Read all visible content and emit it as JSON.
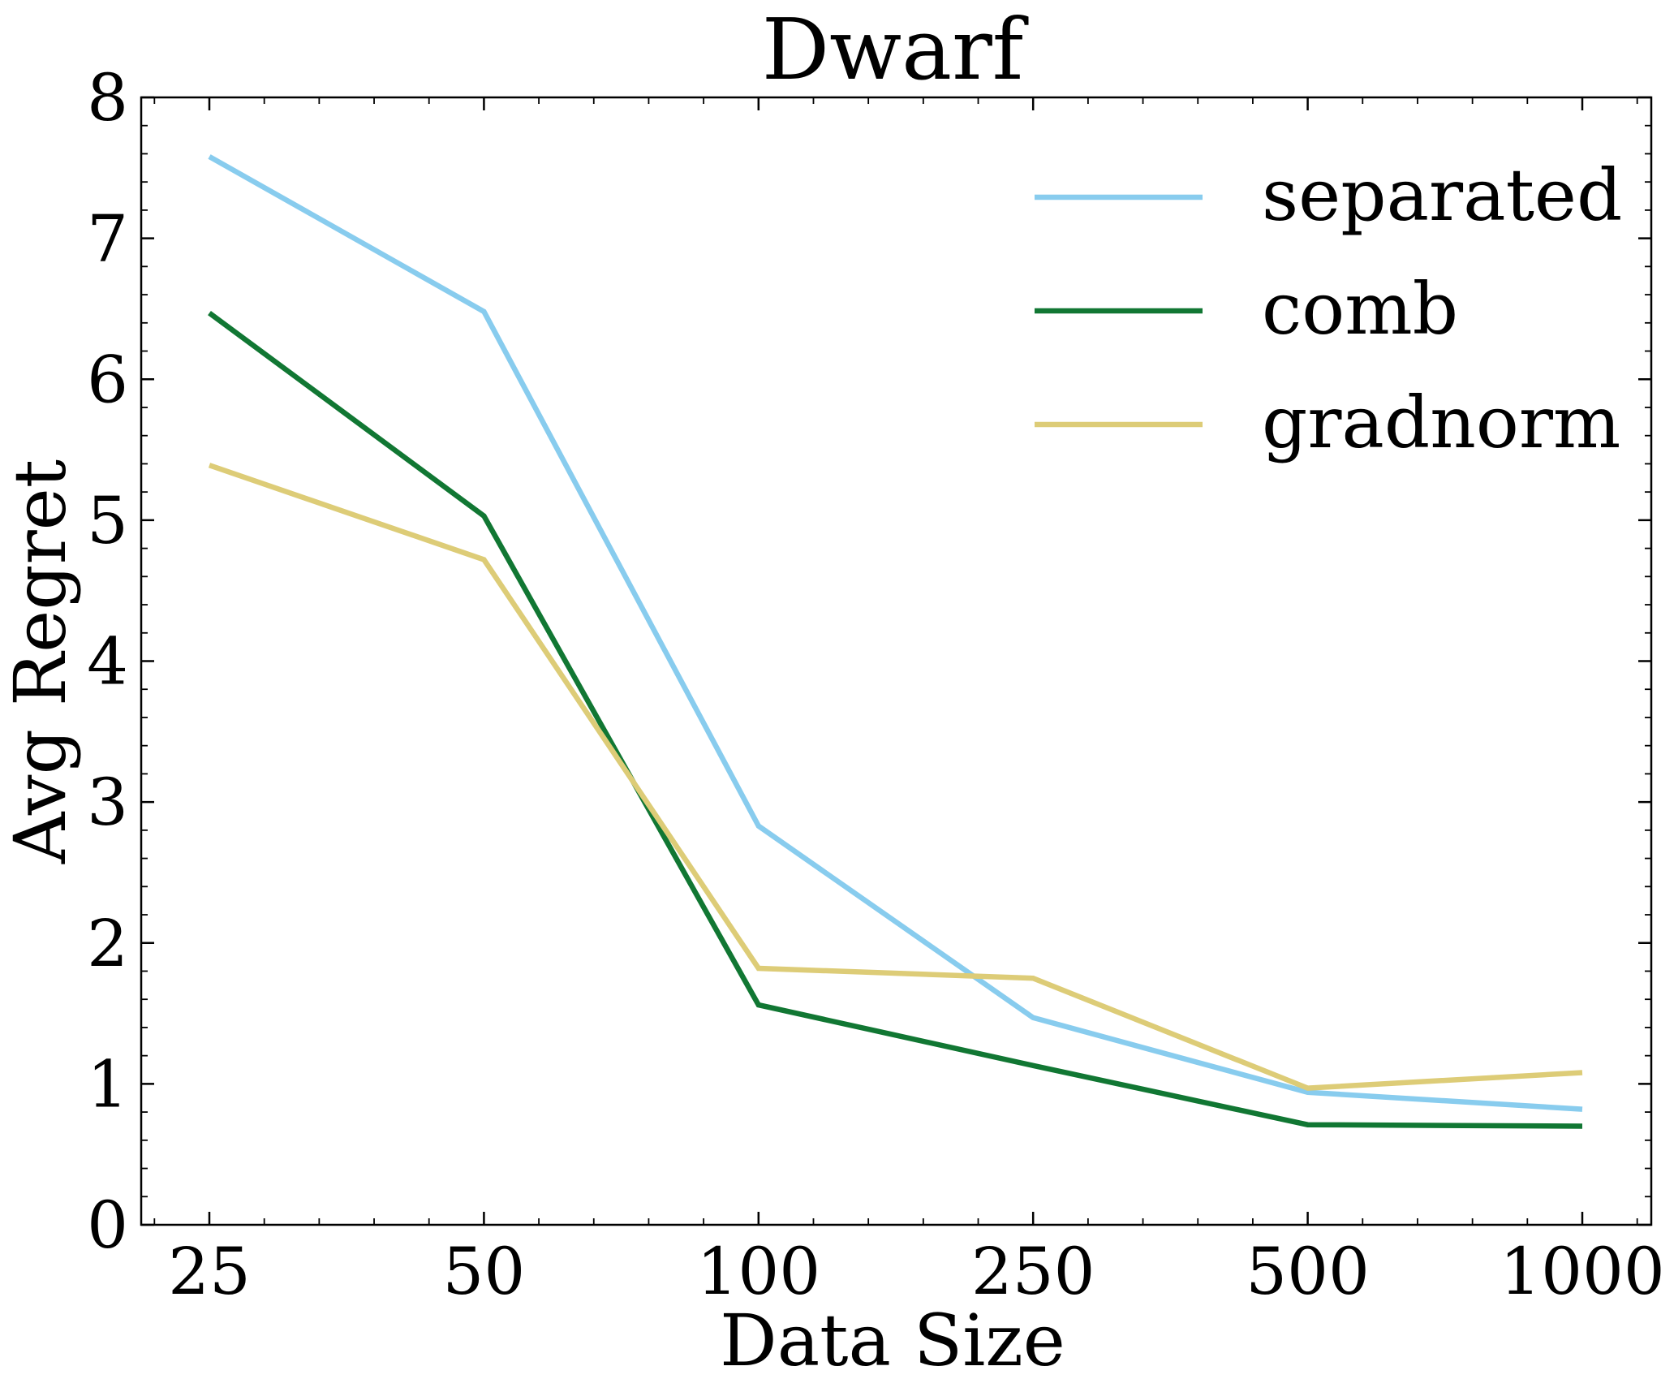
{
  "chart_data": {
    "type": "line",
    "title": "Dwarf",
    "xlabel": "Data Size",
    "ylabel": "Avg Regret",
    "categories": [
      "25",
      "50",
      "100",
      "250",
      "500",
      "1000"
    ],
    "ylim": [
      0,
      8
    ],
    "yticks": [
      "0",
      "1",
      "2",
      "3",
      "4",
      "5",
      "6",
      "7",
      "8"
    ],
    "grid": false,
    "legend_position": "top-right",
    "series": [
      {
        "name": "separated",
        "color": "#88ccee",
        "values": [
          7.58,
          6.48,
          2.83,
          1.47,
          0.94,
          0.82
        ]
      },
      {
        "name": "comb",
        "color": "#117733",
        "values": [
          6.47,
          5.03,
          1.56,
          1.13,
          0.71,
          0.7
        ]
      },
      {
        "name": "gradnorm",
        "color": "#ddcc77",
        "values": [
          5.39,
          4.72,
          1.82,
          1.75,
          0.97,
          1.08
        ]
      }
    ]
  }
}
